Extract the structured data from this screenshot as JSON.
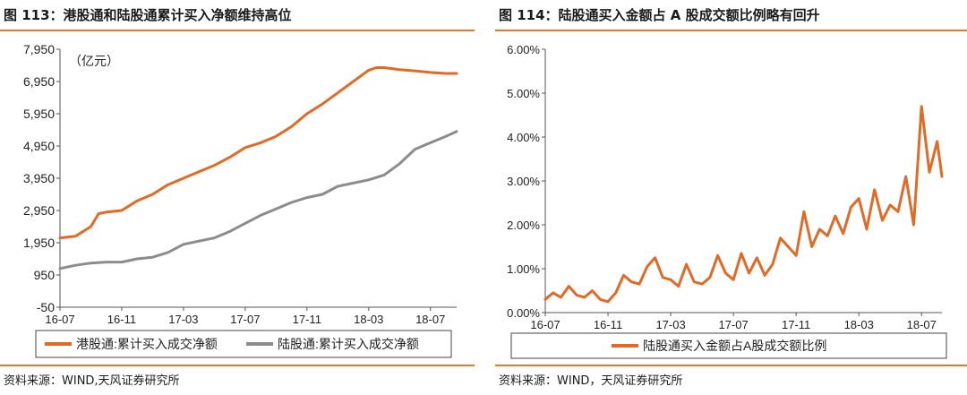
{
  "left": {
    "title": "图 113：港股通和陆股通累计买入净额维持高位",
    "source": "资料来源：WIND,天风证券研究所",
    "chart_data": {
      "type": "line",
      "unit_label": "（亿元）",
      "ylim": [
        -50,
        7950
      ],
      "yticks": [
        "7,950",
        "6,950",
        "5,950",
        "4,950",
        "3,950",
        "2,950",
        "1,950",
        "950",
        "-50"
      ],
      "ytick_values": [
        7950,
        6950,
        5950,
        4950,
        3950,
        2950,
        1950,
        950,
        -50
      ],
      "xticks": [
        "16-07",
        "16-11",
        "17-03",
        "17-07",
        "17-11",
        "18-03",
        "18-07"
      ],
      "xtick_values": [
        0,
        4,
        8,
        12,
        16,
        20,
        24
      ],
      "xlim": [
        0,
        25.7
      ],
      "series": [
        {
          "name": "港股通:累计买入成交净额",
          "color": "#e06b26",
          "x": [
            0,
            1,
            2,
            2.5,
            3,
            4,
            5,
            6,
            7,
            8,
            9,
            10,
            11,
            12,
            13,
            14,
            15,
            16,
            17,
            18,
            19,
            20,
            20.5,
            21,
            22,
            23,
            24,
            25,
            25.7
          ],
          "y": [
            2100,
            2150,
            2450,
            2850,
            2900,
            2950,
            3250,
            3450,
            3750,
            3950,
            4150,
            4350,
            4600,
            4900,
            5050,
            5250,
            5550,
            5950,
            6250,
            6600,
            6950,
            7300,
            7380,
            7380,
            7320,
            7280,
            7230,
            7200,
            7200
          ]
        },
        {
          "name": "陆股通:累计买入成交净额",
          "color": "#8c8c8c",
          "x": [
            0,
            1,
            2,
            3,
            4,
            5,
            6,
            7,
            8,
            9,
            10,
            11,
            12,
            13,
            14,
            15,
            16,
            17,
            18,
            19,
            20,
            21,
            22,
            23,
            24,
            25,
            25.7
          ],
          "y": [
            1150,
            1250,
            1320,
            1350,
            1350,
            1450,
            1500,
            1650,
            1900,
            2000,
            2100,
            2300,
            2550,
            2800,
            3000,
            3200,
            3350,
            3450,
            3700,
            3800,
            3900,
            4050,
            4400,
            4850,
            5050,
            5250,
            5400
          ]
        }
      ]
    }
  },
  "right": {
    "title": "图 114：陆股通买入金额占 A 股成交额比例略有回升",
    "source": "资料来源：WIND，天风证券研究所",
    "chart_data": {
      "type": "line",
      "ylim": [
        0,
        6
      ],
      "yticks": [
        "6.00%",
        "5.00%",
        "4.00%",
        "3.00%",
        "2.00%",
        "1.00%",
        "0.00%"
      ],
      "ytick_values": [
        6,
        5,
        4,
        3,
        2,
        1,
        0
      ],
      "xticks": [
        "16-07",
        "16-11",
        "17-03",
        "17-07",
        "17-11",
        "18-03",
        "18-07"
      ],
      "xtick_values": [
        0,
        4,
        8,
        12,
        16,
        20,
        24
      ],
      "xlim": [
        0,
        25.3
      ],
      "series": [
        {
          "name": "陆股通买入金额占A股成交额比例",
          "color": "#e06b26",
          "x": [
            0,
            0.5,
            1,
            1.5,
            2,
            2.5,
            3,
            3.5,
            4,
            4.5,
            5,
            5.5,
            6,
            6.5,
            7,
            7.5,
            8,
            8.5,
            9,
            9.5,
            10,
            10.5,
            11,
            11.5,
            12,
            12.5,
            13,
            13.5,
            14,
            14.5,
            15,
            15.5,
            16,
            16.5,
            17,
            17.5,
            18,
            18.5,
            19,
            19.5,
            20,
            20.5,
            21,
            21.5,
            22,
            22.5,
            23,
            23.5,
            24,
            24.5,
            25,
            25.3
          ],
          "y": [
            0.3,
            0.45,
            0.35,
            0.6,
            0.4,
            0.35,
            0.5,
            0.3,
            0.25,
            0.45,
            0.85,
            0.7,
            0.65,
            1.05,
            1.25,
            0.8,
            0.75,
            0.6,
            1.1,
            0.7,
            0.65,
            0.8,
            1.3,
            0.9,
            0.75,
            1.35,
            0.9,
            1.25,
            0.85,
            1.1,
            1.7,
            1.5,
            1.3,
            2.3,
            1.5,
            1.9,
            1.75,
            2.2,
            1.8,
            2.4,
            2.6,
            1.9,
            2.8,
            2.1,
            2.45,
            2.3,
            3.1,
            2.0,
            4.7,
            3.2,
            3.9,
            3.1
          ]
        }
      ]
    }
  }
}
